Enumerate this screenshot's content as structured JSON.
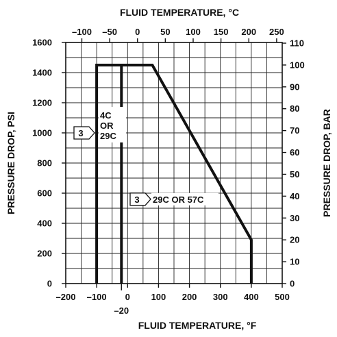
{
  "chart_data": {
    "type": "line",
    "title": "",
    "x_bottom": {
      "label": "FLUID TEMPERATURE, °F",
      "range": [
        -200,
        500
      ],
      "ticks": [
        "–200",
        "–100",
        "0",
        "100",
        "200",
        "300",
        "400",
        "500"
      ],
      "extra_tick": "–20"
    },
    "x_top": {
      "label": "FLUID TEMPERATURE, °C",
      "range_data_units": [
        -128.9,
        260
      ],
      "ticks": [
        "–100",
        "–50",
        "0",
        "50",
        "100",
        "150",
        "200",
        "250"
      ]
    },
    "y_left": {
      "label": "PRESSURE DROP, PSI",
      "range": [
        0,
        1600
      ],
      "ticks": [
        "0",
        "200",
        "400",
        "600",
        "800",
        "1000",
        "1200",
        "1400",
        "1600"
      ]
    },
    "y_right": {
      "label": "PRESSURE DROP, BAR",
      "range": [
        0,
        110.3
      ],
      "ticks": [
        "0",
        "10",
        "20",
        "30",
        "40",
        "50",
        "60",
        "70",
        "80",
        "90",
        "100",
        "110"
      ]
    },
    "grid": true,
    "series": [
      {
        "x": [
          -100,
          -100,
          80,
          400,
          400
        ],
        "y": [
          0,
          1450,
          1450,
          290,
          0
        ]
      },
      {
        "x": [
          -20,
          -20
        ],
        "y": [
          0,
          1450
        ]
      }
    ],
    "annotations": [
      {
        "marker": "3",
        "text": [
          "4C",
          "OR",
          "29C"
        ]
      },
      {
        "marker": "3",
        "text": [
          "29C OR 57C"
        ]
      }
    ]
  }
}
